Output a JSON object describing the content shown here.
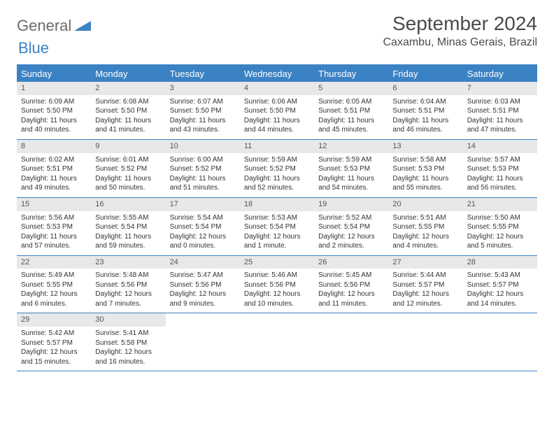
{
  "logo": {
    "part1": "General",
    "part2": "Blue"
  },
  "title": "September 2024",
  "location": "Caxambu, Minas Gerais, Brazil",
  "colors": {
    "accent": "#3b82c4",
    "header_text": "#ffffff",
    "daynum_bg": "#e8e8e8",
    "body_text": "#333333",
    "logo_gray": "#6b6b6b"
  },
  "dayNames": [
    "Sunday",
    "Monday",
    "Tuesday",
    "Wednesday",
    "Thursday",
    "Friday",
    "Saturday"
  ],
  "weeks": [
    [
      {
        "n": "1",
        "sr": "Sunrise: 6:09 AM",
        "ss": "Sunset: 5:50 PM",
        "dl": "Daylight: 11 hours and 40 minutes."
      },
      {
        "n": "2",
        "sr": "Sunrise: 6:08 AM",
        "ss": "Sunset: 5:50 PM",
        "dl": "Daylight: 11 hours and 41 minutes."
      },
      {
        "n": "3",
        "sr": "Sunrise: 6:07 AM",
        "ss": "Sunset: 5:50 PM",
        "dl": "Daylight: 11 hours and 43 minutes."
      },
      {
        "n": "4",
        "sr": "Sunrise: 6:06 AM",
        "ss": "Sunset: 5:50 PM",
        "dl": "Daylight: 11 hours and 44 minutes."
      },
      {
        "n": "5",
        "sr": "Sunrise: 6:05 AM",
        "ss": "Sunset: 5:51 PM",
        "dl": "Daylight: 11 hours and 45 minutes."
      },
      {
        "n": "6",
        "sr": "Sunrise: 6:04 AM",
        "ss": "Sunset: 5:51 PM",
        "dl": "Daylight: 11 hours and 46 minutes."
      },
      {
        "n": "7",
        "sr": "Sunrise: 6:03 AM",
        "ss": "Sunset: 5:51 PM",
        "dl": "Daylight: 11 hours and 47 minutes."
      }
    ],
    [
      {
        "n": "8",
        "sr": "Sunrise: 6:02 AM",
        "ss": "Sunset: 5:51 PM",
        "dl": "Daylight: 11 hours and 49 minutes."
      },
      {
        "n": "9",
        "sr": "Sunrise: 6:01 AM",
        "ss": "Sunset: 5:52 PM",
        "dl": "Daylight: 11 hours and 50 minutes."
      },
      {
        "n": "10",
        "sr": "Sunrise: 6:00 AM",
        "ss": "Sunset: 5:52 PM",
        "dl": "Daylight: 11 hours and 51 minutes."
      },
      {
        "n": "11",
        "sr": "Sunrise: 5:59 AM",
        "ss": "Sunset: 5:52 PM",
        "dl": "Daylight: 11 hours and 52 minutes."
      },
      {
        "n": "12",
        "sr": "Sunrise: 5:59 AM",
        "ss": "Sunset: 5:53 PM",
        "dl": "Daylight: 11 hours and 54 minutes."
      },
      {
        "n": "13",
        "sr": "Sunrise: 5:58 AM",
        "ss": "Sunset: 5:53 PM",
        "dl": "Daylight: 11 hours and 55 minutes."
      },
      {
        "n": "14",
        "sr": "Sunrise: 5:57 AM",
        "ss": "Sunset: 5:53 PM",
        "dl": "Daylight: 11 hours and 56 minutes."
      }
    ],
    [
      {
        "n": "15",
        "sr": "Sunrise: 5:56 AM",
        "ss": "Sunset: 5:53 PM",
        "dl": "Daylight: 11 hours and 57 minutes."
      },
      {
        "n": "16",
        "sr": "Sunrise: 5:55 AM",
        "ss": "Sunset: 5:54 PM",
        "dl": "Daylight: 11 hours and 59 minutes."
      },
      {
        "n": "17",
        "sr": "Sunrise: 5:54 AM",
        "ss": "Sunset: 5:54 PM",
        "dl": "Daylight: 12 hours and 0 minutes."
      },
      {
        "n": "18",
        "sr": "Sunrise: 5:53 AM",
        "ss": "Sunset: 5:54 PM",
        "dl": "Daylight: 12 hours and 1 minute."
      },
      {
        "n": "19",
        "sr": "Sunrise: 5:52 AM",
        "ss": "Sunset: 5:54 PM",
        "dl": "Daylight: 12 hours and 2 minutes."
      },
      {
        "n": "20",
        "sr": "Sunrise: 5:51 AM",
        "ss": "Sunset: 5:55 PM",
        "dl": "Daylight: 12 hours and 4 minutes."
      },
      {
        "n": "21",
        "sr": "Sunrise: 5:50 AM",
        "ss": "Sunset: 5:55 PM",
        "dl": "Daylight: 12 hours and 5 minutes."
      }
    ],
    [
      {
        "n": "22",
        "sr": "Sunrise: 5:49 AM",
        "ss": "Sunset: 5:55 PM",
        "dl": "Daylight: 12 hours and 6 minutes."
      },
      {
        "n": "23",
        "sr": "Sunrise: 5:48 AM",
        "ss": "Sunset: 5:56 PM",
        "dl": "Daylight: 12 hours and 7 minutes."
      },
      {
        "n": "24",
        "sr": "Sunrise: 5:47 AM",
        "ss": "Sunset: 5:56 PM",
        "dl": "Daylight: 12 hours and 9 minutes."
      },
      {
        "n": "25",
        "sr": "Sunrise: 5:46 AM",
        "ss": "Sunset: 5:56 PM",
        "dl": "Daylight: 12 hours and 10 minutes."
      },
      {
        "n": "26",
        "sr": "Sunrise: 5:45 AM",
        "ss": "Sunset: 5:56 PM",
        "dl": "Daylight: 12 hours and 11 minutes."
      },
      {
        "n": "27",
        "sr": "Sunrise: 5:44 AM",
        "ss": "Sunset: 5:57 PM",
        "dl": "Daylight: 12 hours and 12 minutes."
      },
      {
        "n": "28",
        "sr": "Sunrise: 5:43 AM",
        "ss": "Sunset: 5:57 PM",
        "dl": "Daylight: 12 hours and 14 minutes."
      }
    ],
    [
      {
        "n": "29",
        "sr": "Sunrise: 5:42 AM",
        "ss": "Sunset: 5:57 PM",
        "dl": "Daylight: 12 hours and 15 minutes."
      },
      {
        "n": "30",
        "sr": "Sunrise: 5:41 AM",
        "ss": "Sunset: 5:58 PM",
        "dl": "Daylight: 12 hours and 16 minutes."
      },
      null,
      null,
      null,
      null,
      null
    ]
  ]
}
